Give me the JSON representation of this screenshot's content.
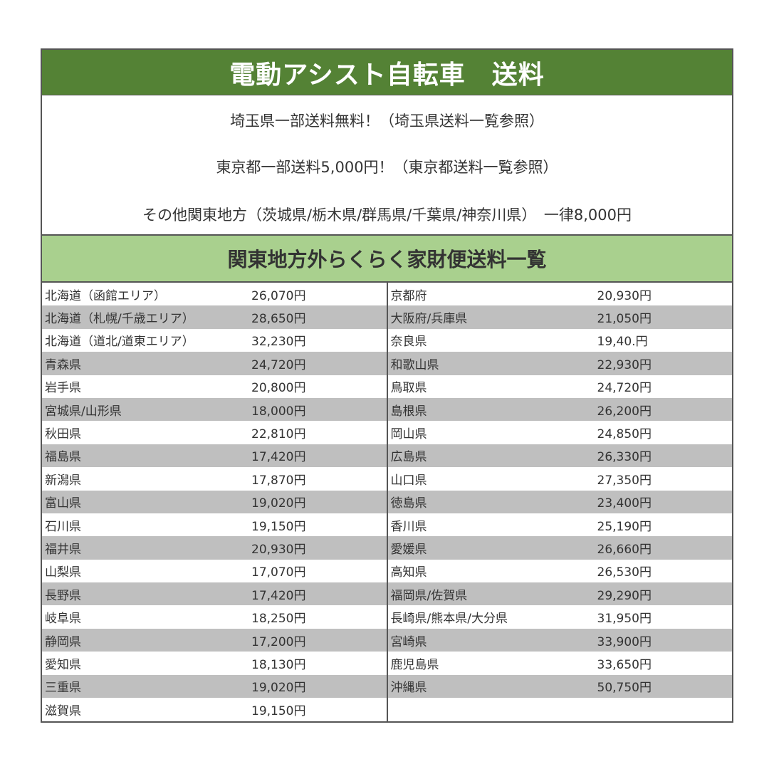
{
  "title": "電動アシスト自転車　送料",
  "notes": [
    "埼玉県一部送料無料！（埼玉県送料一覧参照）",
    "東京都一部送料5,000円！（東京都送料一覧参照）",
    "その他関東地方（茨城県/栃木県/群馬県/千葉県/神奈川県）　一律8,000円"
  ],
  "subtitle": "関東地方外らくらく家財便送料一覧",
  "colors": {
    "title_bg": "#548235",
    "subtitle_bg": "#a9d08e",
    "stripe": "#bfbfbf"
  },
  "left_table": [
    {
      "region": "北海道（函館エリア）",
      "price": "26,070円"
    },
    {
      "region": "北海道（札幌/千歳エリア）",
      "price": "28,650円"
    },
    {
      "region": "北海道（道北/道東エリア）",
      "price": "32,230円"
    },
    {
      "region": "青森県",
      "price": "24,720円"
    },
    {
      "region": "岩手県",
      "price": "20,800円"
    },
    {
      "region": "宮城県/山形県",
      "price": "18,000円"
    },
    {
      "region": "秋田県",
      "price": "22,810円"
    },
    {
      "region": "福島県",
      "price": "17,420円"
    },
    {
      "region": "新潟県",
      "price": "17,870円"
    },
    {
      "region": "富山県",
      "price": "19,020円"
    },
    {
      "region": "石川県",
      "price": "19,150円"
    },
    {
      "region": "福井県",
      "price": "20,930円"
    },
    {
      "region": "山梨県",
      "price": "17,070円"
    },
    {
      "region": "長野県",
      "price": "17,420円"
    },
    {
      "region": "岐阜県",
      "price": "18,250円"
    },
    {
      "region": "静岡県",
      "price": "17,200円"
    },
    {
      "region": "愛知県",
      "price": "18,130円"
    },
    {
      "region": "三重県",
      "price": "19,020円"
    },
    {
      "region": "滋賀県",
      "price": "19,150円"
    }
  ],
  "right_table": [
    {
      "region": "京都府",
      "price": "20,930円"
    },
    {
      "region": "大阪府/兵庫県",
      "price": "21,050円"
    },
    {
      "region": "奈良県",
      "price": "19,40.円"
    },
    {
      "region": "和歌山県",
      "price": "22,930円"
    },
    {
      "region": "鳥取県",
      "price": "24,720円"
    },
    {
      "region": "島根県",
      "price": "26,200円"
    },
    {
      "region": "岡山県",
      "price": "24,850円"
    },
    {
      "region": "広島県",
      "price": "26,330円"
    },
    {
      "region": "山口県",
      "price": "27,350円"
    },
    {
      "region": "徳島県",
      "price": "23,400円"
    },
    {
      "region": "香川県",
      "price": "25,190円"
    },
    {
      "region": "愛媛県",
      "price": "26,660円"
    },
    {
      "region": "高知県",
      "price": "26,530円"
    },
    {
      "region": "福岡県/佐賀県",
      "price": "29,290円"
    },
    {
      "region": "長崎県/熊本県/大分県",
      "price": "31,950円"
    },
    {
      "region": "宮崎県",
      "price": "33,900円"
    },
    {
      "region": "鹿児島県",
      "price": "33,650円"
    },
    {
      "region": "沖縄県",
      "price": "50,750円"
    },
    {
      "region": "",
      "price": ""
    }
  ]
}
